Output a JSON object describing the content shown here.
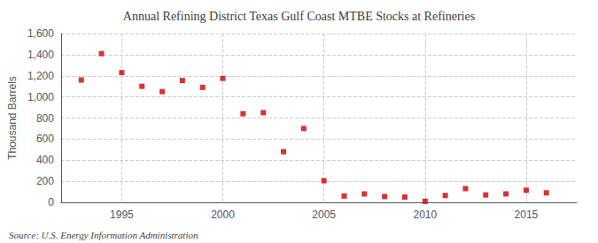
{
  "chart_data": {
    "type": "scatter",
    "title": "Annual Refining District Texas Gulf Coast MTBE Stocks at Refineries",
    "ylabel": "Thousand Barrels",
    "annotations": [
      "Source: U.S. Energy Information Administration"
    ],
    "x": [
      1993,
      1994,
      1995,
      1996,
      1997,
      1998,
      1999,
      2000,
      2001,
      2002,
      2003,
      2004,
      2005,
      2006,
      2007,
      2008,
      2009,
      2010,
      2011,
      2012,
      2013,
      2014,
      2015,
      2016
    ],
    "values": [
      1160,
      1410,
      1230,
      1100,
      1050,
      1155,
      1090,
      1175,
      840,
      850,
      480,
      700,
      205,
      60,
      80,
      55,
      50,
      10,
      65,
      130,
      70,
      80,
      115,
      90
    ],
    "color": "#cc0000",
    "marker": "square",
    "xlim": [
      1992.0,
      2017.5
    ],
    "xticks": [
      1995,
      2000,
      2005,
      2010,
      2015
    ],
    "ylim": [
      0,
      1600
    ],
    "yticks": [
      0,
      200,
      400,
      600,
      800,
      {
        "value": 1000,
        "label": "1,000"
      },
      {
        "value": 1200,
        "label": "1,200"
      },
      {
        "value": 1400,
        "label": "1,400"
      },
      {
        "value": 1600,
        "label": "1,600"
      }
    ],
    "grid": true
  }
}
